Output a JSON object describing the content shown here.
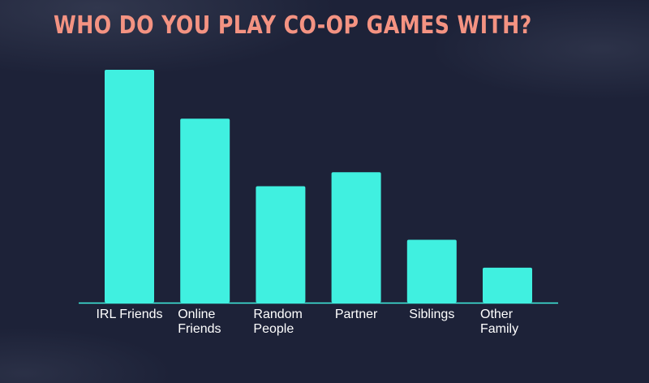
{
  "colors": {
    "background": "#1d2238",
    "bar": "#40f0e0",
    "axis": "#40f0e0",
    "title": "#f49382",
    "label": "#ffffff"
  },
  "chart_data": {
    "type": "bar",
    "title": "WHO DO YOU PLAY CO-OP GAMES WITH?",
    "xlabel": "",
    "ylabel": "",
    "y_axis_shown": false,
    "grid": false,
    "categories": [
      [
        "IRL Friends"
      ],
      [
        "Online",
        "Friends"
      ],
      [
        "Random",
        "People"
      ],
      [
        "Partner"
      ],
      [
        "Siblings"
      ],
      [
        "Other",
        "Family"
      ]
    ],
    "values": [
      100,
      79,
      50,
      56,
      27,
      15
    ],
    "ylim": [
      0,
      100
    ]
  }
}
